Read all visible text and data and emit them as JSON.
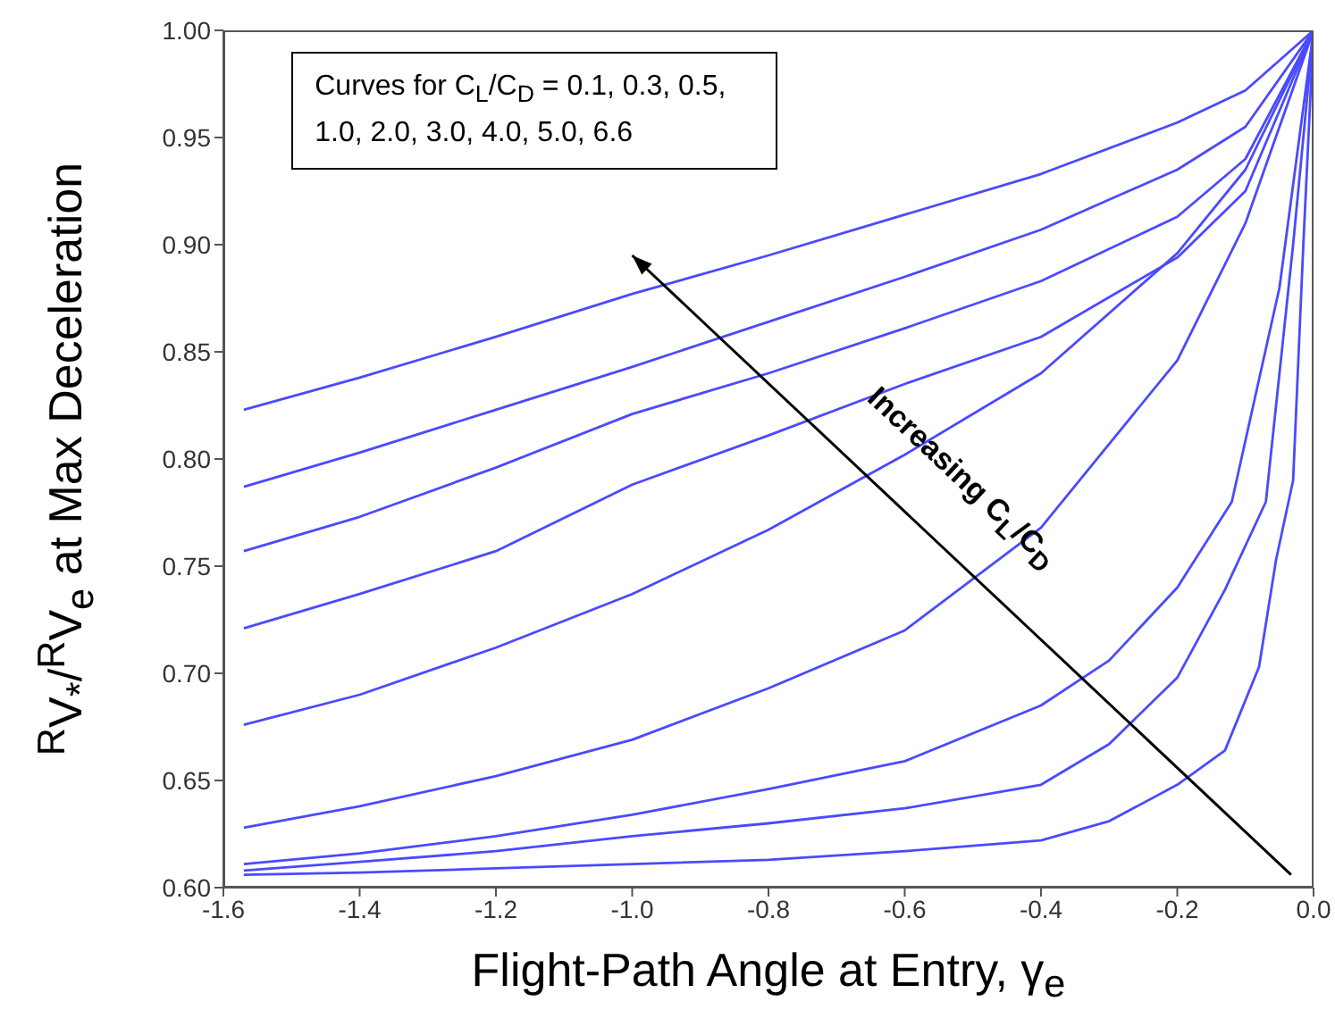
{
  "chart_data": {
    "type": "line",
    "xlabel": "Flight-Path Angle at Entry, γ$_{e}$",
    "ylabel": "$^{R}$V$_{*}$/$^{R}$V$_{e}$  at Max Deceleration",
    "annotations": [
      "Curves for C$_{L}$/C$_{D}$ = 0.1, 0.3, 0.5, 1.0, 2.0, 3.0, 4.0, 5.0, 6.6",
      "Increasing C$_{L}$/C$_{D}$"
    ],
    "xlim": [
      -1.6,
      0
    ],
    "ylim": [
      0.6,
      1.0
    ],
    "xticks": [
      -1.6,
      -1.4,
      -1.2,
      {
        "value": -1,
        "label": "-1.0"
      },
      -0.8,
      -0.6,
      -0.4,
      -0.2,
      {
        "value": 0,
        "label": "0.0"
      }
    ],
    "yticks": [
      {
        "value": 0.6,
        "label": "0.60"
      },
      0.65,
      {
        "value": 0.7,
        "label": "0.70"
      },
      0.75,
      {
        "value": 0.8,
        "label": "0.80"
      },
      0.85,
      {
        "value": 0.9,
        "label": "0.90"
      },
      0.95,
      {
        "value": 1,
        "label": "1.00"
      }
    ],
    "grid": false,
    "series": [
      {
        "color": "#4a4aff",
        "x": [
          -1.57,
          -1.4,
          -1.2,
          -1.0,
          -0.8,
          -0.6,
          -0.4,
          -0.2,
          -0.1,
          0
        ],
        "values": [
          0.823,
          0.838,
          0.857,
          0.877,
          0.895,
          0.914,
          0.933,
          0.957,
          0.972,
          1.0
        ]
      },
      {
        "color": "#4a4aff",
        "x": [
          -1.57,
          -1.4,
          -1.2,
          -1.0,
          -0.8,
          -0.6,
          -0.4,
          -0.2,
          -0.1,
          0
        ],
        "values": [
          0.787,
          0.803,
          0.823,
          0.843,
          0.864,
          0.885,
          0.907,
          0.935,
          0.955,
          1.0
        ]
      },
      {
        "color": "#4a4aff",
        "x": [
          -1.57,
          -1.4,
          -1.2,
          -1.0,
          -0.8,
          -0.6,
          -0.4,
          -0.2,
          -0.1,
          0
        ],
        "values": [
          0.757,
          0.773,
          0.796,
          0.821,
          0.84,
          0.861,
          0.883,
          0.913,
          0.94,
          1.0
        ]
      },
      {
        "color": "#4a4aff",
        "x": [
          -1.57,
          -1.4,
          -1.2,
          -1.0,
          -0.8,
          -0.6,
          -0.4,
          -0.2,
          -0.1,
          0
        ],
        "values": [
          0.721,
          0.737,
          0.757,
          0.788,
          0.811,
          0.835,
          0.857,
          0.894,
          0.925,
          1.0
        ]
      },
      {
        "color": "#4a4aff",
        "x": [
          -1.57,
          -1.4,
          -1.2,
          -1.0,
          -0.8,
          -0.6,
          -0.4,
          -0.2,
          -0.1,
          0
        ],
        "values": [
          0.676,
          0.69,
          0.712,
          0.737,
          0.767,
          0.802,
          0.84,
          0.896,
          0.935,
          1.0
        ]
      },
      {
        "color": "#4a4aff",
        "x": [
          -1.57,
          -1.4,
          -1.2,
          -1.0,
          -0.8,
          -0.6,
          -0.4,
          -0.2,
          -0.1,
          0
        ],
        "values": [
          0.628,
          0.638,
          0.652,
          0.669,
          0.693,
          0.72,
          0.768,
          0.846,
          0.91,
          1.0
        ]
      },
      {
        "color": "#4a4aff",
        "x": [
          -1.57,
          -1.4,
          -1.2,
          -1.0,
          -0.8,
          -0.6,
          -0.4,
          -0.3,
          -0.2,
          -0.12,
          -0.05,
          0
        ],
        "values": [
          0.611,
          0.616,
          0.624,
          0.634,
          0.646,
          0.659,
          0.685,
          0.706,
          0.74,
          0.78,
          0.88,
          1.0
        ]
      },
      {
        "color": "#4a4aff",
        "x": [
          -1.57,
          -1.4,
          -1.2,
          -1.0,
          -0.8,
          -0.6,
          -0.4,
          -0.3,
          -0.2,
          -0.13,
          -0.07,
          -0.03,
          0
        ],
        "values": [
          0.608,
          0.612,
          0.617,
          0.624,
          0.63,
          0.637,
          0.648,
          0.667,
          0.698,
          0.739,
          0.78,
          0.9,
          1.0
        ]
      },
      {
        "color": "#4a4aff",
        "x": [
          -1.57,
          -1.4,
          -1.2,
          -1.0,
          -0.8,
          -0.6,
          -0.4,
          -0.3,
          -0.2,
          -0.13,
          -0.08,
          -0.055,
          -0.03,
          -0.015,
          0
        ],
        "values": [
          0.606,
          0.607,
          0.609,
          0.611,
          0.613,
          0.617,
          0.622,
          0.631,
          0.648,
          0.664,
          0.703,
          0.753,
          0.79,
          0.9,
          1.0
        ]
      }
    ]
  }
}
